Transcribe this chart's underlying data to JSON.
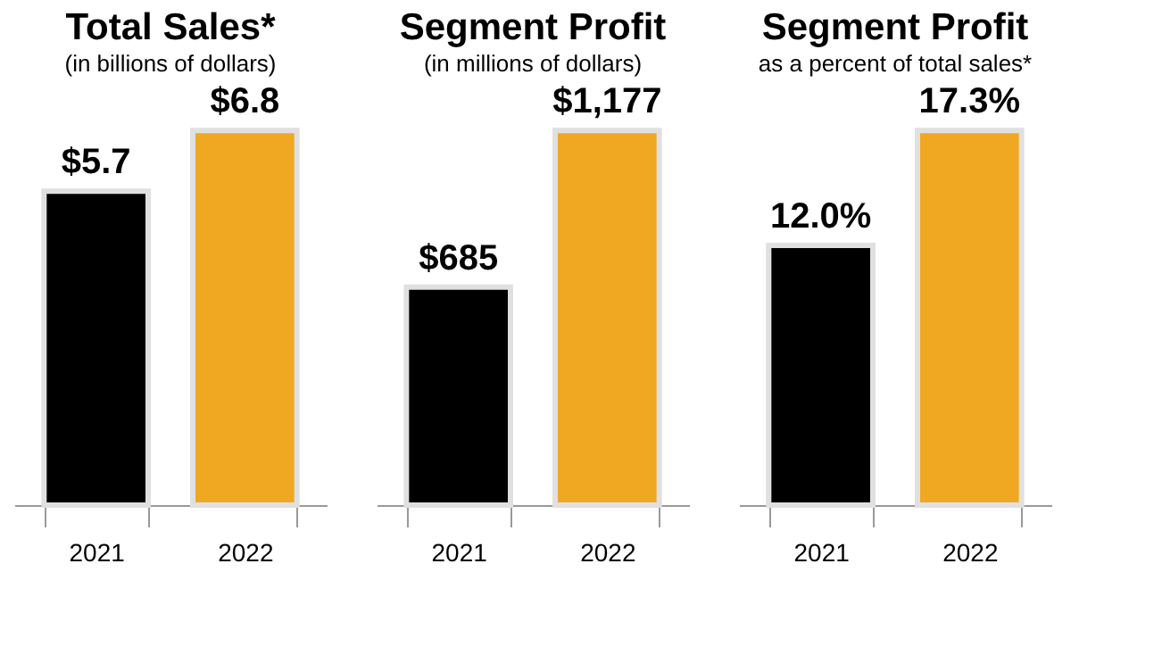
{
  "chart_data": [
    {
      "type": "bar",
      "title": "Total Sales*",
      "subtitle": "(in billions of dollars)",
      "categories": [
        "2021",
        "2022"
      ],
      "values": [
        5.7,
        6.8
      ],
      "colors": [
        "#000000",
        "#f0a823"
      ],
      "value_labels": [
        "$5.7",
        "$6.8"
      ]
    },
    {
      "type": "bar",
      "title": "Segment Profit",
      "subtitle": "(in millions of dollars)",
      "categories": [
        "2021",
        "2022"
      ],
      "values": [
        685,
        1177
      ],
      "colors": [
        "#000000",
        "#f0a823"
      ],
      "value_labels": [
        "$685",
        "$1,177"
      ]
    },
    {
      "type": "bar",
      "title": "Segment Profit",
      "subtitle": "as a percent of total sales*",
      "categories": [
        "2021",
        "2022"
      ],
      "values": [
        12.0,
        17.3
      ],
      "colors": [
        "#000000",
        "#f0a823"
      ],
      "value_labels": [
        "12.0%",
        "17.3%"
      ]
    }
  ]
}
